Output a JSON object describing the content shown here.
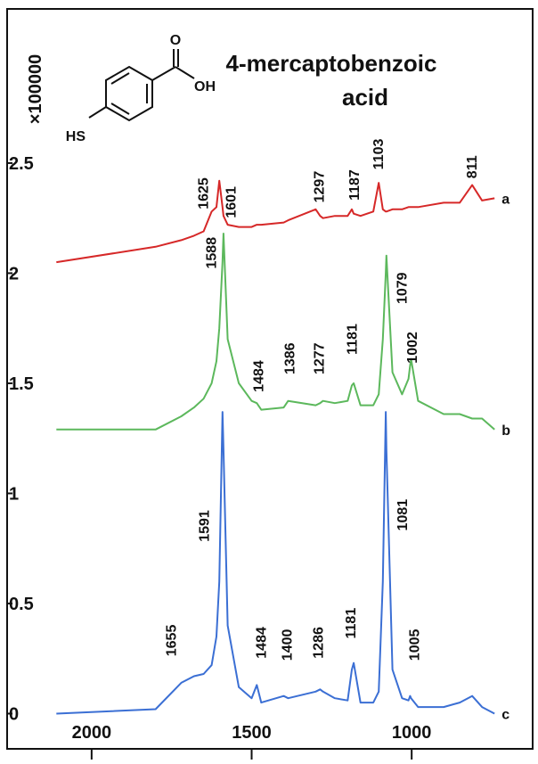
{
  "chart_data": {
    "type": "line",
    "title": [
      "4-mercaptobenzoic",
      "acid"
    ],
    "y_scale_label": "×100000",
    "molecule_labels": [
      "O",
      "OH",
      "HS"
    ],
    "x": [
      2110,
      1800,
      1720,
      1680,
      1650,
      1625,
      1610,
      1601,
      1591,
      1588,
      1575,
      1540,
      1500,
      1484,
      1470,
      1400,
      1386,
      1300,
      1286,
      1277,
      1240,
      1200,
      1187,
      1181,
      1160,
      1120,
      1103,
      1090,
      1081,
      1079,
      1060,
      1030,
      1010,
      1005,
      1002,
      980,
      900,
      850,
      811,
      780,
      741
    ],
    "series": [
      {
        "name": "a",
        "color": "#d62828",
        "values": [
          2.05,
          2.12,
          2.15,
          2.17,
          2.19,
          2.28,
          2.3,
          2.42,
          2.3,
          2.26,
          2.22,
          2.21,
          2.21,
          2.22,
          2.22,
          2.23,
          2.24,
          2.29,
          2.26,
          2.25,
          2.26,
          2.26,
          2.29,
          2.27,
          2.26,
          2.28,
          2.41,
          2.29,
          2.28,
          2.28,
          2.29,
          2.29,
          2.3,
          2.3,
          2.3,
          2.3,
          2.32,
          2.32,
          2.4,
          2.33,
          2.34
        ]
      },
      {
        "name": "b",
        "color": "#5cb85c",
        "values": [
          1.29,
          1.29,
          1.35,
          1.39,
          1.43,
          1.5,
          1.6,
          1.75,
          2.05,
          2.18,
          1.7,
          1.5,
          1.42,
          1.41,
          1.38,
          1.39,
          1.42,
          1.4,
          1.41,
          1.42,
          1.41,
          1.42,
          1.49,
          1.5,
          1.4,
          1.4,
          1.45,
          1.7,
          2.0,
          2.08,
          1.55,
          1.45,
          1.52,
          1.58,
          1.61,
          1.42,
          1.36,
          1.36,
          1.34,
          1.34,
          1.29
        ]
      },
      {
        "name": "c",
        "color": "#3b6fd4",
        "values": [
          0.0,
          0.02,
          0.14,
          0.17,
          0.18,
          0.22,
          0.35,
          0.6,
          1.37,
          1.2,
          0.4,
          0.12,
          0.07,
          0.13,
          0.05,
          0.08,
          0.07,
          0.1,
          0.11,
          0.1,
          0.07,
          0.06,
          0.2,
          0.23,
          0.05,
          0.05,
          0.1,
          0.6,
          1.37,
          1.2,
          0.2,
          0.07,
          0.06,
          0.08,
          0.07,
          0.03,
          0.03,
          0.05,
          0.08,
          0.03,
          0.0
        ]
      }
    ],
    "annotations": [
      {
        "text": "1625",
        "x": 1653,
        "y": 2.29
      },
      {
        "text": "1601",
        "x": 1567,
        "y": 2.25
      },
      {
        "text": "1297",
        "x": 1292,
        "y": 2.32
      },
      {
        "text": "1187",
        "x": 1181,
        "y": 2.33
      },
      {
        "text": "1103",
        "x": 1106,
        "y": 2.47
      },
      {
        "text": "811",
        "x": 814,
        "y": 2.43
      },
      {
        "text": "1588",
        "x": 1628,
        "y": 2.02
      },
      {
        "text": "1484",
        "x": 1481,
        "y": 1.46
      },
      {
        "text": "1386",
        "x": 1383,
        "y": 1.54
      },
      {
        "text": "1277",
        "x": 1292,
        "y": 1.54
      },
      {
        "text": "1181",
        "x": 1189,
        "y": 1.63
      },
      {
        "text": "1079",
        "x": 1033,
        "y": 1.86
      },
      {
        "text": "1002",
        "x": 1000,
        "y": 1.59
      },
      {
        "text": "1591",
        "x": 1650,
        "y": 0.78
      },
      {
        "text": "1655",
        "x": 1753,
        "y": 0.26
      },
      {
        "text": "1484",
        "x": 1472,
        "y": 0.25
      },
      {
        "text": "1400",
        "x": 1392,
        "y": 0.24
      },
      {
        "text": "1286",
        "x": 1294,
        "y": 0.25
      },
      {
        "text": "1181",
        "x": 1192,
        "y": 0.34
      },
      {
        "text": "1081",
        "x": 1031,
        "y": 0.83
      },
      {
        "text": "1005",
        "x": 994,
        "y": 0.24
      }
    ],
    "xlim": [
      2264,
      622
    ],
    "ylim": [
      -0.16,
      3.2
    ],
    "xticks": [
      2000,
      1500,
      1000
    ],
    "yticks": [
      0,
      0.5,
      1,
      1.5,
      2,
      2.5
    ]
  }
}
